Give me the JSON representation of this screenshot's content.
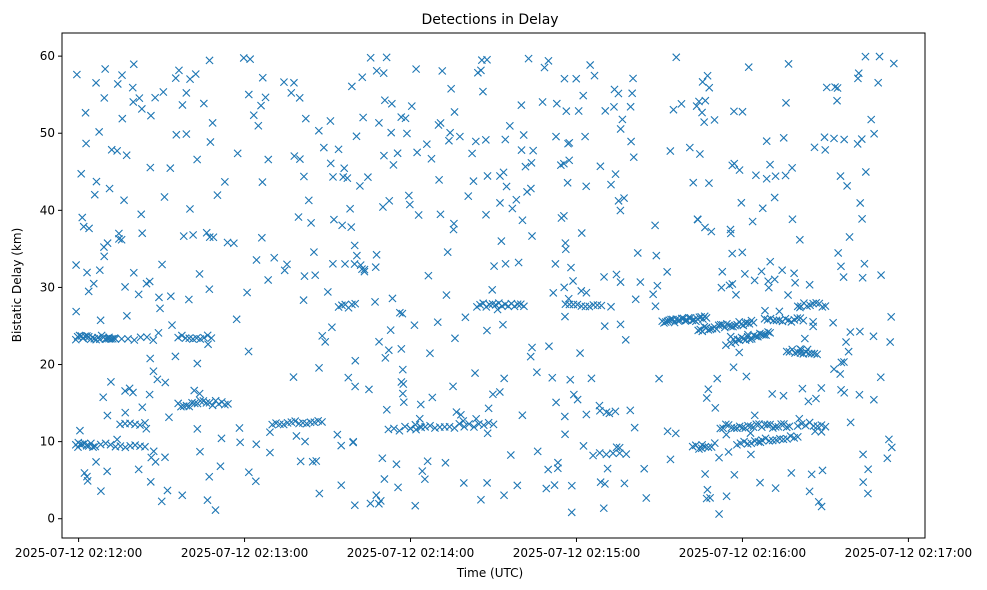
{
  "chart_data": {
    "type": "scatter",
    "title": "Detections in Delay",
    "xlabel": "Time (UTC)",
    "ylabel": "Bistatic Delay (km)",
    "marker": "x",
    "color": "#1f77b4",
    "grid": false,
    "xlim": [
      "2025-07-12 02:11:54",
      "2025-07-12 02:17:06"
    ],
    "ylim": [
      -2.5,
      63
    ],
    "x_ticks": [
      "2025-07-12 02:12:00",
      "2025-07-12 02:13:00",
      "2025-07-12 02:14:00",
      "2025-07-12 02:15:00",
      "2025-07-12 02:16:00",
      "2025-07-12 02:17:00"
    ],
    "y_ticks": [
      0,
      10,
      20,
      30,
      40,
      50,
      60
    ],
    "x_range_observed": [
      "2025-07-12 02:11:59",
      "2025-07-12 02:16:55"
    ],
    "y_range_observed": [
      0.5,
      60
    ],
    "tracks": [
      {
        "from": "2025-07-12 02:11:59",
        "to": "2025-07-12 02:12:13",
        "y_start": 23.5,
        "y_end": 23.5,
        "count": 22
      },
      {
        "from": "2025-07-12 02:11:59",
        "to": "2025-07-12 02:12:06",
        "y_start": 9.5,
        "y_end": 9.5,
        "count": 10
      },
      {
        "from": "2025-07-12 02:12:08",
        "to": "2025-07-12 02:12:24",
        "y_start": 9.5,
        "y_end": 9.5,
        "count": 10
      },
      {
        "from": "2025-07-12 02:12:15",
        "to": "2025-07-12 02:12:24",
        "y_start": 12.3,
        "y_end": 12.3,
        "count": 6
      },
      {
        "from": "2025-07-12 02:12:11",
        "to": "2025-07-12 02:12:27",
        "y_start": 23.4,
        "y_end": 23.4,
        "count": 8
      },
      {
        "from": "2025-07-12 02:12:36",
        "to": "2025-07-12 02:12:48",
        "y_start": 23.5,
        "y_end": 23.5,
        "count": 10
      },
      {
        "from": "2025-07-12 02:12:36",
        "to": "2025-07-12 02:12:43",
        "y_start": 14.8,
        "y_end": 14.8,
        "count": 8
      },
      {
        "from": "2025-07-12 02:12:44",
        "to": "2025-07-12 02:12:54",
        "y_start": 15.0,
        "y_end": 15.0,
        "count": 10
      },
      {
        "from": "2025-07-12 02:13:10",
        "to": "2025-07-12 02:13:28",
        "y_start": 12.4,
        "y_end": 12.4,
        "count": 14
      },
      {
        "from": "2025-07-12 02:13:34",
        "to": "2025-07-12 02:13:40",
        "y_start": 27.6,
        "y_end": 27.6,
        "count": 6
      },
      {
        "from": "2025-07-12 02:13:52",
        "to": "2025-07-12 02:14:02",
        "y_start": 11.7,
        "y_end": 11.7,
        "count": 6
      },
      {
        "from": "2025-07-12 02:14:00",
        "to": "2025-07-12 02:14:30",
        "y_start": 11.9,
        "y_end": 12.2,
        "count": 18
      },
      {
        "from": "2025-07-12 02:14:24",
        "to": "2025-07-12 02:14:41",
        "y_start": 27.7,
        "y_end": 27.8,
        "count": 16
      },
      {
        "from": "2025-07-12 02:14:56",
        "to": "2025-07-12 02:15:09",
        "y_start": 27.7,
        "y_end": 27.8,
        "count": 10
      },
      {
        "from": "2025-07-12 02:15:06",
        "to": "2025-07-12 02:15:18",
        "y_start": 8.3,
        "y_end": 8.3,
        "count": 6
      },
      {
        "from": "2025-07-12 02:15:31",
        "to": "2025-07-12 02:15:47",
        "y_start": 25.5,
        "y_end": 26.0,
        "count": 26
      },
      {
        "from": "2025-07-12 02:15:44",
        "to": "2025-07-12 02:16:04",
        "y_start": 24.5,
        "y_end": 25.5,
        "count": 28
      },
      {
        "from": "2025-07-12 02:15:56",
        "to": "2025-07-12 02:16:10",
        "y_start": 23.0,
        "y_end": 24.0,
        "count": 20
      },
      {
        "from": "2025-07-12 02:16:08",
        "to": "2025-07-12 02:16:22",
        "y_start": 25.8,
        "y_end": 25.8,
        "count": 14
      },
      {
        "from": "2025-07-12 02:16:16",
        "to": "2025-07-12 02:16:27",
        "y_start": 21.8,
        "y_end": 21.5,
        "count": 12
      },
      {
        "from": "2025-07-12 02:16:20",
        "to": "2025-07-12 02:16:30",
        "y_start": 27.7,
        "y_end": 27.7,
        "count": 10
      },
      {
        "from": "2025-07-12 02:15:42",
        "to": "2025-07-12 02:15:50",
        "y_start": 9.2,
        "y_end": 9.6,
        "count": 8
      },
      {
        "from": "2025-07-12 02:15:52",
        "to": "2025-07-12 02:16:17",
        "y_start": 12.0,
        "y_end": 12.0,
        "count": 26
      },
      {
        "from": "2025-07-12 02:15:58",
        "to": "2025-07-12 02:16:20",
        "y_start": 9.8,
        "y_end": 10.5,
        "count": 18
      },
      {
        "from": "2025-07-12 02:16:20",
        "to": "2025-07-12 02:16:30",
        "y_start": 12.2,
        "y_end": 12.2,
        "count": 8
      }
    ],
    "background_clutter": {
      "from": "2025-07-12 02:11:59",
      "to": "2025-07-12 02:16:55",
      "y_min": 0.5,
      "y_max": 60,
      "count": 640
    }
  }
}
